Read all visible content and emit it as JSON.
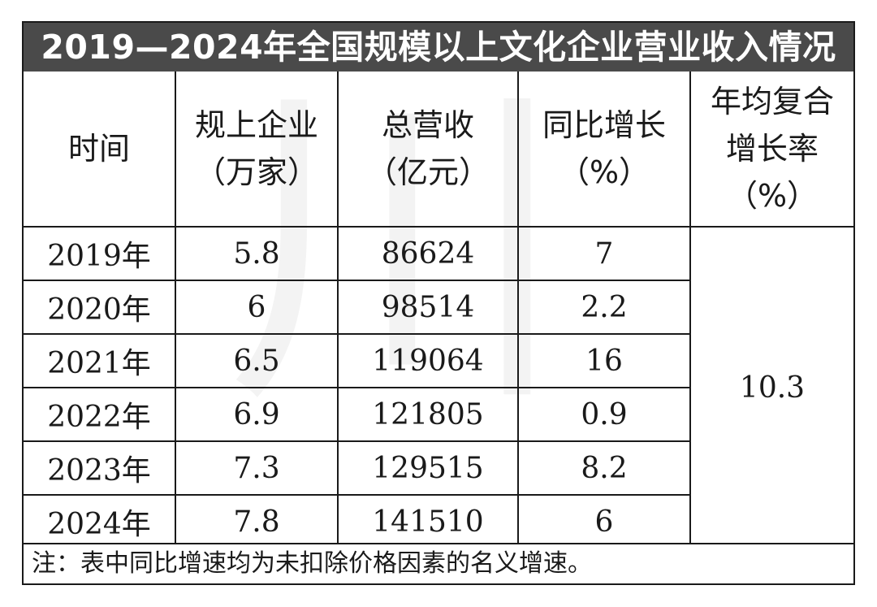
{
  "title": "2019—2024年全国规模以上文化企业营业收入情况",
  "watermark": "川",
  "headers": [
    {
      "line1": "时间",
      "line2": "",
      "line3": ""
    },
    {
      "line1": "规上企业",
      "line2": "（万家）",
      "line3": ""
    },
    {
      "line1": "总营收",
      "line2": "（亿元）",
      "line3": ""
    },
    {
      "line1": "同比增长",
      "line2": "（%）",
      "line3": ""
    },
    {
      "line1": "年均复合",
      "line2": "增长率",
      "line3": "（%）"
    }
  ],
  "rows": [
    {
      "year": "2019年",
      "enterprises": "5.8",
      "revenue": "86624",
      "yoy": "7"
    },
    {
      "year": "2020年",
      "enterprises": "6",
      "revenue": "98514",
      "yoy": "2.2"
    },
    {
      "year": "2021年",
      "enterprises": "6.5",
      "revenue": "119064",
      "yoy": "16"
    },
    {
      "year": "2022年",
      "enterprises": "6.9",
      "revenue": "121805",
      "yoy": "0.9"
    },
    {
      "year": "2023年",
      "enterprises": "7.3",
      "revenue": "129515",
      "yoy": "8.2"
    },
    {
      "year": "2024年",
      "enterprises": "7.8",
      "revenue": "141510",
      "yoy": "6"
    }
  ],
  "cagr": "10.3",
  "note": "注：表中同比增速均为未扣除价格因素的名义增速。"
}
